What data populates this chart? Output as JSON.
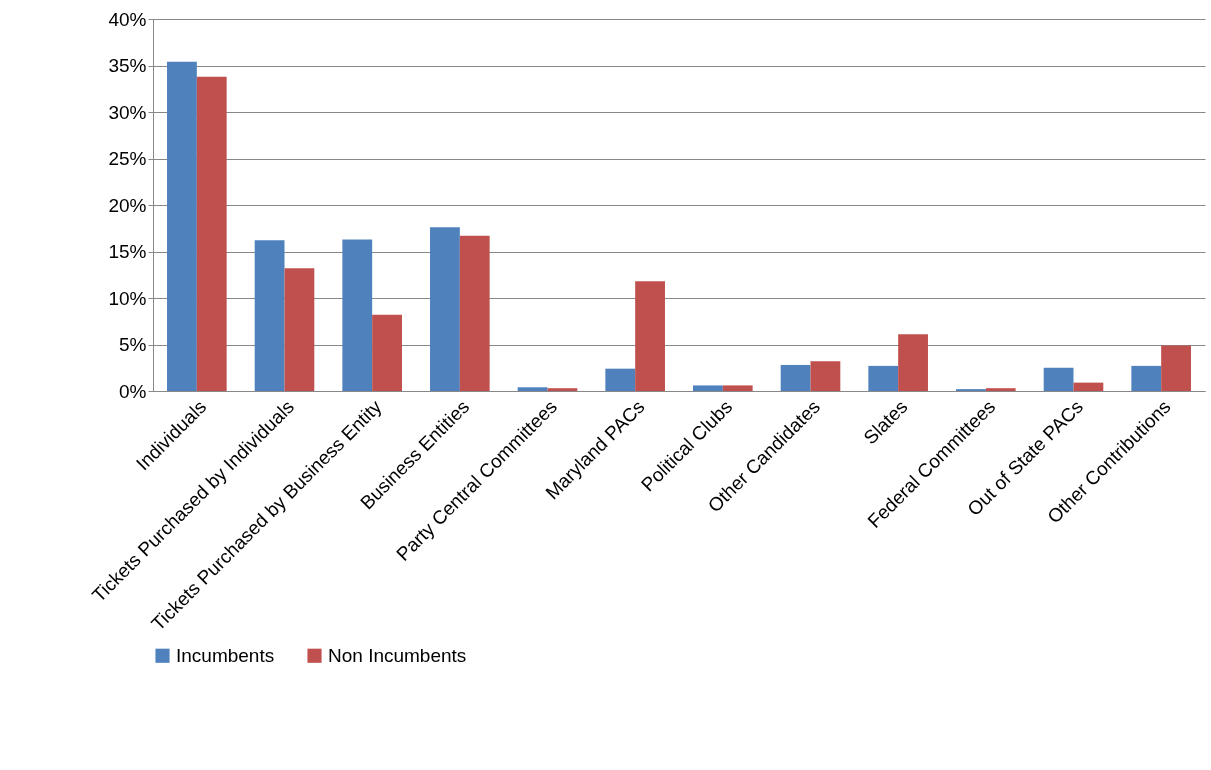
{
  "chart_data": {
    "type": "bar",
    "categories": [
      "Individuals",
      "Tickets Purchased by Individuals",
      "Tickets Purchased by Business Entity",
      "Business Entities",
      "Party Central Committees",
      "Maryland PACs",
      "Political Clubs",
      "Other Candidates",
      "Slates",
      "Federal Committees",
      "Out of State PACs",
      "Other Contributions"
    ],
    "series": [
      {
        "name": "Incumbents",
        "color": "#4f81bd",
        "values": [
          35.4,
          16.2,
          16.3,
          17.6,
          0.4,
          2.4,
          0.6,
          2.8,
          2.7,
          0.2,
          2.5,
          2.7
        ]
      },
      {
        "name": "Non Incumbents",
        "color": "#c0504d",
        "values": [
          33.8,
          13.2,
          8.2,
          16.7,
          0.3,
          11.8,
          0.6,
          3.2,
          6.1,
          0.3,
          0.9,
          4.9
        ]
      }
    ],
    "ylim": [
      0,
      40
    ],
    "yticks": [
      {
        "value": 0,
        "label": "0%"
      },
      {
        "value": 5,
        "label": "5%"
      },
      {
        "value": 10,
        "label": "10%"
      },
      {
        "value": 15,
        "label": "15%"
      },
      {
        "value": 20,
        "label": "20%"
      },
      {
        "value": 25,
        "label": "25%"
      },
      {
        "value": 30,
        "label": "30%"
      },
      {
        "value": 35,
        "label": "35%"
      },
      {
        "value": 40,
        "label": "40%"
      }
    ],
    "grid": "y",
    "legend": "bottom"
  }
}
